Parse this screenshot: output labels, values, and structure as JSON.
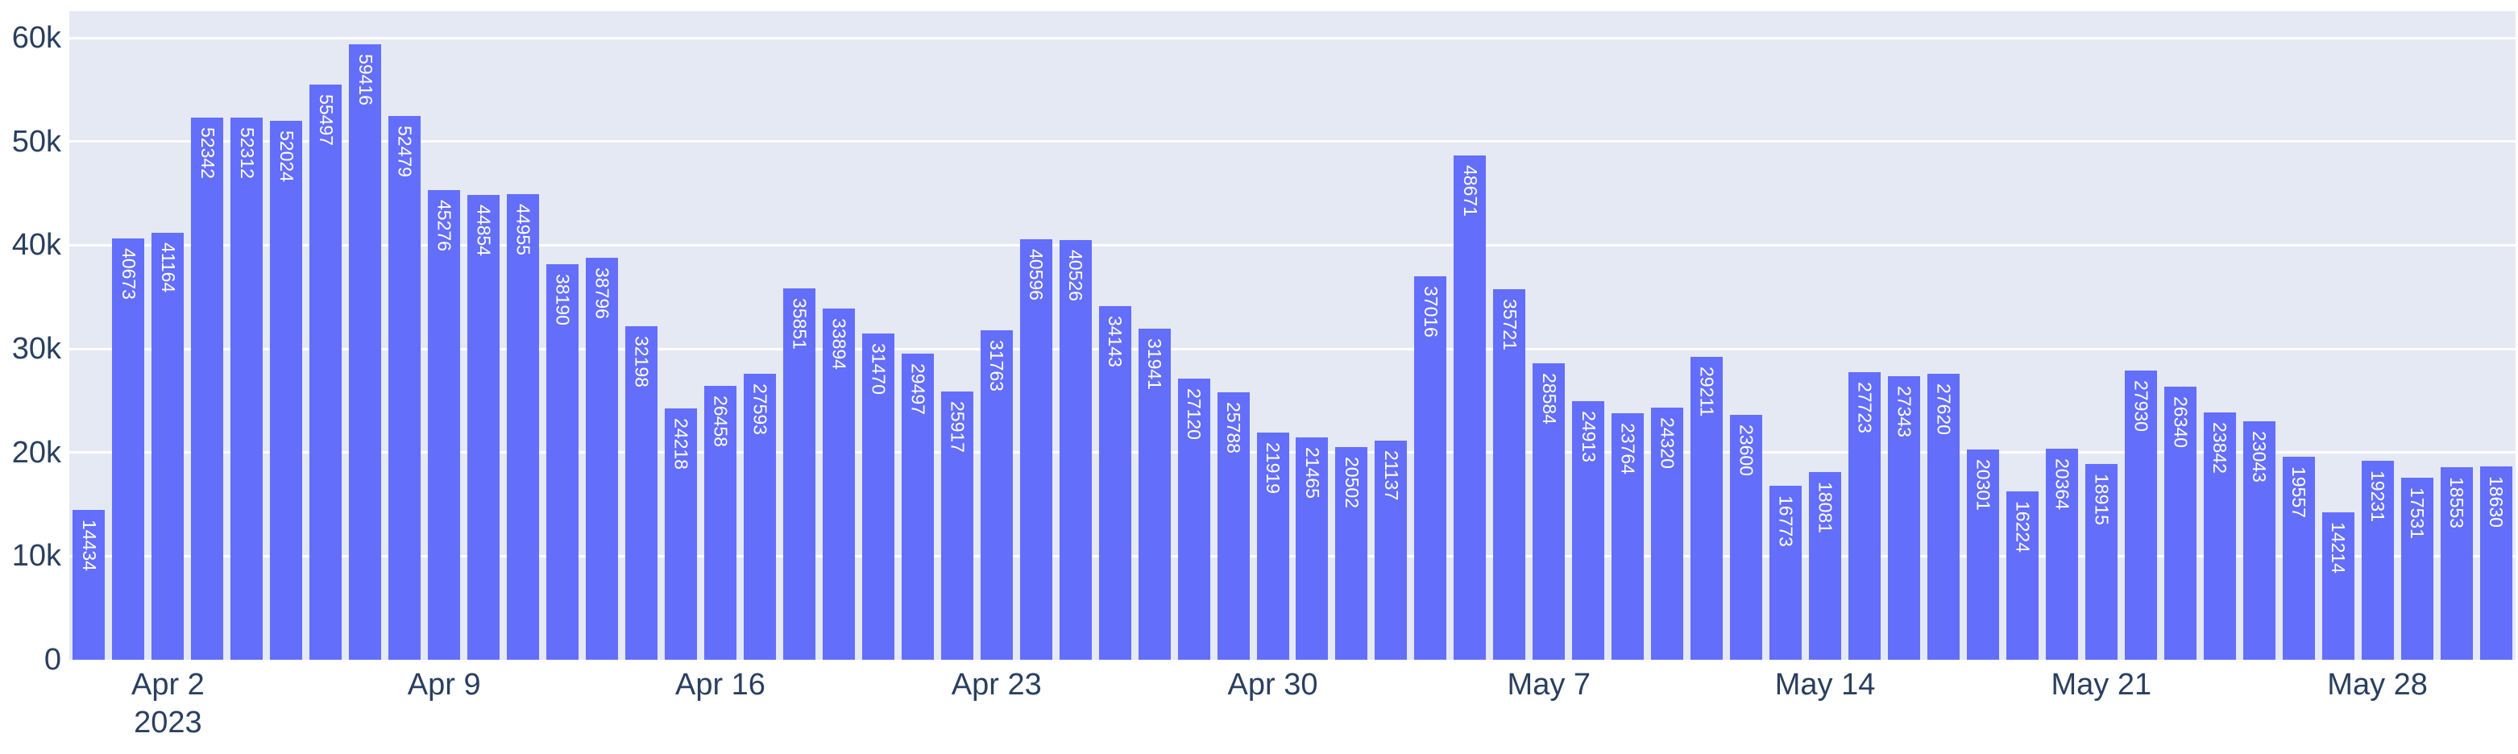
{
  "chart_data": {
    "type": "bar",
    "title": "",
    "xlabel": "",
    "ylabel": "",
    "grid": true,
    "legend": false,
    "ylim": [
      0,
      62565
    ],
    "y_ticks": [
      0,
      10000,
      20000,
      30000,
      40000,
      50000,
      60000
    ],
    "y_tick_labels": [
      "0",
      "10k",
      "20k",
      "30k",
      "40k",
      "50k",
      "60k"
    ],
    "x": [
      "2023-03-31",
      "2023-04-01",
      "2023-04-02",
      "2023-04-03",
      "2023-04-04",
      "2023-04-05",
      "2023-04-06",
      "2023-04-07",
      "2023-04-08",
      "2023-04-09",
      "2023-04-10",
      "2023-04-11",
      "2023-04-12",
      "2023-04-13",
      "2023-04-14",
      "2023-04-15",
      "2023-04-16",
      "2023-04-17",
      "2023-04-18",
      "2023-04-19",
      "2023-04-20",
      "2023-04-21",
      "2023-04-22",
      "2023-04-23",
      "2023-04-24",
      "2023-04-25",
      "2023-04-26",
      "2023-04-27",
      "2023-04-28",
      "2023-04-29",
      "2023-04-30",
      "2023-05-01",
      "2023-05-02",
      "2023-05-03",
      "2023-05-04",
      "2023-05-05",
      "2023-05-06",
      "2023-05-07",
      "2023-05-08",
      "2023-05-09",
      "2023-05-10",
      "2023-05-11",
      "2023-05-12",
      "2023-05-13",
      "2023-05-14",
      "2023-05-15",
      "2023-05-16",
      "2023-05-17",
      "2023-05-18",
      "2023-05-19",
      "2023-05-20",
      "2023-05-21",
      "2023-05-22",
      "2023-05-23",
      "2023-05-24",
      "2023-05-25",
      "2023-05-26",
      "2023-05-27",
      "2023-05-28",
      "2023-05-29",
      "2023-05-30",
      "2023-05-31"
    ],
    "values": [
      14434,
      40673,
      41164,
      52342,
      52312,
      52024,
      55497,
      59416,
      52479,
      45276,
      44854,
      44955,
      38190,
      38796,
      32198,
      24218,
      26458,
      27593,
      35851,
      33894,
      31470,
      29497,
      25917,
      31763,
      40596,
      40526,
      34143,
      31941,
      27120,
      25788,
      21919,
      21465,
      20502,
      21137,
      37016,
      48671,
      35721,
      28584,
      24913,
      23764,
      24320,
      29211,
      23600,
      16773,
      18081,
      27723,
      27343,
      27620,
      20301,
      16224,
      20364,
      18915,
      27930,
      26340,
      23842,
      23043,
      19557,
      14214,
      19231,
      17531,
      18553,
      18630
    ],
    "x_tick_labels": [
      {
        "label": "Apr 2",
        "sub": "2023",
        "bar_index": 3
      },
      {
        "label": "Apr 9",
        "bar_index": 10
      },
      {
        "label": "Apr 16",
        "bar_index": 17
      },
      {
        "label": "Apr 23",
        "bar_index": 24
      },
      {
        "label": "Apr 30",
        "bar_index": 31
      },
      {
        "label": "May 7",
        "bar_index": 38
      },
      {
        "label": "May 14",
        "bar_index": 45
      },
      {
        "label": "May 21",
        "bar_index": 52
      },
      {
        "label": "May 28",
        "bar_index": 59
      }
    ],
    "colors": {
      "bar": "#636EFA",
      "plot_background": "#E5E9F3",
      "gridline": "#FFFFFF",
      "tick_text": "#2A3F5F",
      "bar_label_text": "#FFFFFF",
      "page_background": "#FFFFFF"
    },
    "legend_position": "none"
  }
}
